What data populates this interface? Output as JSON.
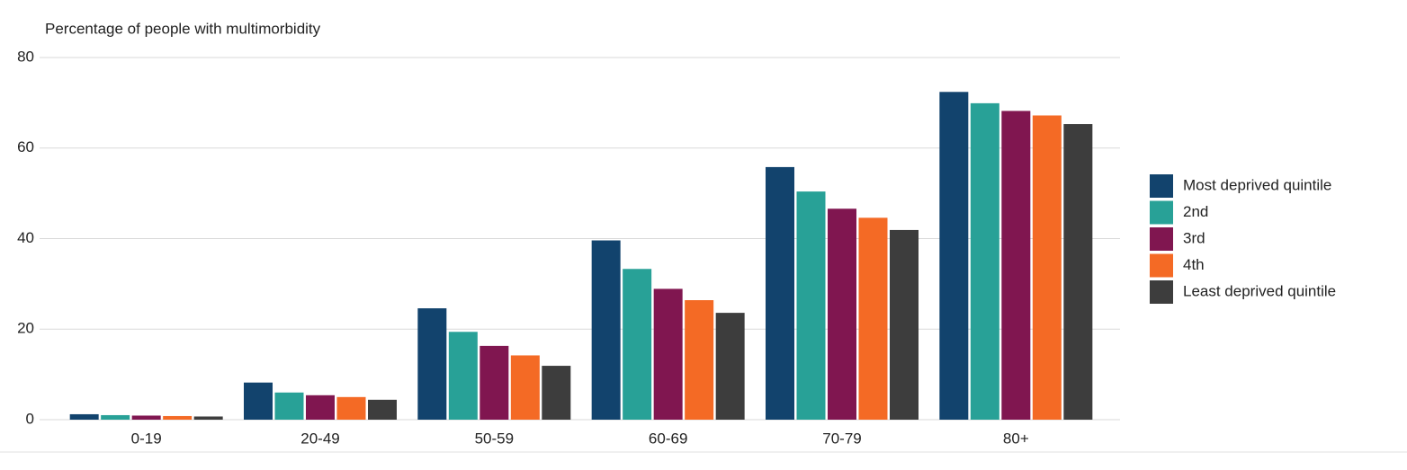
{
  "chart_data": {
    "type": "bar",
    "title": "Percentage of people with multimorbidity",
    "categories": [
      "0-19",
      "20-49",
      "50-59",
      "60-69",
      "70-79",
      "80+"
    ],
    "series": [
      {
        "name": "Most deprived quintile",
        "color": "#12436d",
        "values": [
          1.2,
          8.2,
          24.6,
          39.6,
          55.8,
          72.4
        ]
      },
      {
        "name": "2nd",
        "color": "#28a197",
        "values": [
          1.0,
          6.0,
          19.4,
          33.3,
          50.4,
          69.9
        ]
      },
      {
        "name": "3rd",
        "color": "#801650",
        "values": [
          0.9,
          5.4,
          16.3,
          28.9,
          46.6,
          68.2
        ]
      },
      {
        "name": "4th",
        "color": "#f46a25",
        "values": [
          0.8,
          5.0,
          14.2,
          26.4,
          44.6,
          67.2
        ]
      },
      {
        "name": "Least deprived quintile",
        "color": "#3d3d3d",
        "values": [
          0.7,
          4.4,
          11.9,
          23.6,
          41.9,
          65.3
        ]
      }
    ],
    "ylim": [
      0,
      80
    ],
    "yticks": [
      0,
      20,
      40,
      60,
      80
    ],
    "grid": true,
    "legend": "right"
  }
}
